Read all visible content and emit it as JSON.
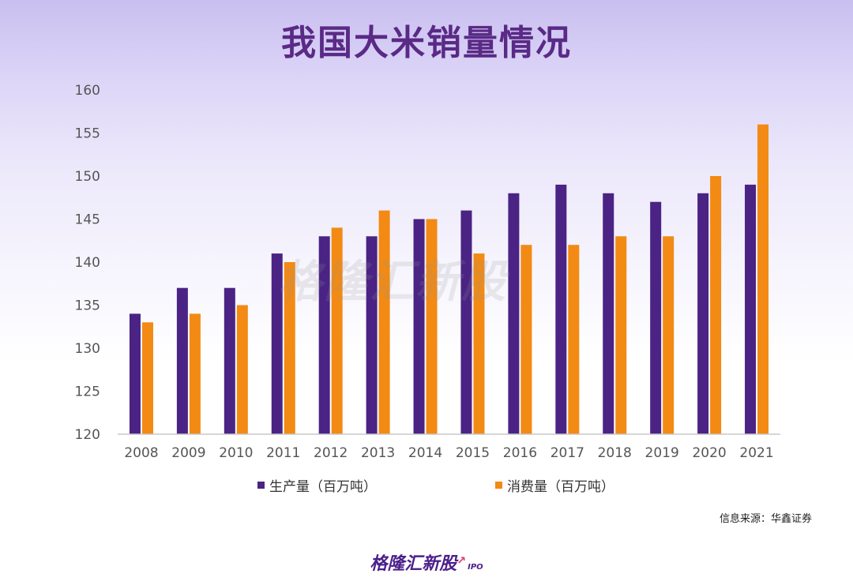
{
  "title": "我国大米销量情况",
  "source": "信息来源：华鑫证券",
  "logo": {
    "text": "格隆汇新股",
    "sub": "IPO"
  },
  "watermark": "格隆汇新股",
  "colors": {
    "production": "#4a2384",
    "consumption": "#f28a14",
    "axis": "#c8c8c8",
    "tick": "#555555"
  },
  "chart_data": {
    "type": "bar",
    "title": "我国大米销量情况",
    "categories": [
      "2008",
      "2009",
      "2010",
      "2011",
      "2012",
      "2013",
      "2014",
      "2015",
      "2016",
      "2017",
      "2018",
      "2019",
      "2020",
      "2021"
    ],
    "series": [
      {
        "name": "生产量（百万吨）",
        "values": [
          134,
          137,
          137,
          141,
          143,
          143,
          145,
          146,
          148,
          149,
          148,
          147,
          148,
          149
        ]
      },
      {
        "name": "消费量（百万吨）",
        "values": [
          133,
          134,
          135,
          140,
          144,
          146,
          145,
          141,
          142,
          142,
          143,
          143,
          150,
          156
        ]
      }
    ],
    "yticks": [
      120,
      125,
      130,
      135,
      140,
      145,
      150,
      155,
      160
    ],
    "ylim": [
      120,
      160
    ],
    "grid": false,
    "legend_position": "bottom"
  }
}
